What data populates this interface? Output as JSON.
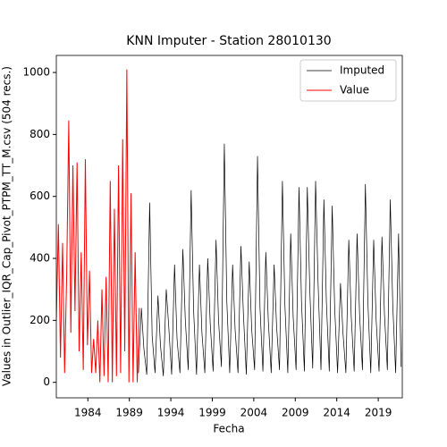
{
  "chart_data": {
    "type": "line",
    "title": "KNN Imputer - Station 28010130",
    "xlabel": "Fecha",
    "ylabel": "Values in Outlier_IQR_Cap_Pivot_PTPM_TT_M.csv (504 recs.)",
    "xlim": [
      1980.2,
      2021.9
    ],
    "ylim": [
      -50,
      1055
    ],
    "xticks": [
      1984,
      1989,
      1994,
      1999,
      2004,
      2009,
      2014,
      2019
    ],
    "yticks": [
      0,
      200,
      400,
      600,
      800,
      1000
    ],
    "legend": "upper right",
    "series": [
      {
        "name": "Imputed",
        "color": "#000000",
        "x": [
          1990.1,
          1990.45,
          1990.75,
          1991.1,
          1991.45,
          1991.75,
          1992.1,
          1992.45,
          1992.75,
          1993.1,
          1993.45,
          1993.75,
          1994.1,
          1994.45,
          1994.75,
          1995.1,
          1995.45,
          1995.75,
          1996.1,
          1996.45,
          1996.75,
          1997.1,
          1997.45,
          1997.75,
          1998.1,
          1998.45,
          1998.75,
          1999.1,
          1999.45,
          1999.75,
          2000.1,
          2000.45,
          2000.75,
          2001.1,
          2001.45,
          2001.75,
          2002.1,
          2002.45,
          2002.75,
          2003.1,
          2003.45,
          2003.75,
          2004.1,
          2004.45,
          2004.75,
          2005.1,
          2005.45,
          2005.75,
          2006.1,
          2006.45,
          2006.75,
          2007.1,
          2007.45,
          2007.75,
          2008.1,
          2008.45,
          2008.75,
          2009.1,
          2009.45,
          2009.75,
          2010.1,
          2010.45,
          2010.75,
          2011.1,
          2011.45,
          2011.75,
          2012.1,
          2012.45,
          2012.75,
          2013.1,
          2013.45,
          2013.75,
          2014.1,
          2014.45,
          2014.75,
          2015.1,
          2015.45,
          2015.75,
          2016.1,
          2016.45,
          2016.75,
          2017.1,
          2017.45,
          2017.75,
          2018.1,
          2018.45,
          2018.75,
          2019.1,
          2019.45,
          2019.75,
          2020.1,
          2020.45,
          2020.75,
          2021.1,
          2021.45,
          2021.75
        ],
        "values": [
          30,
          240,
          110,
          25,
          580,
          150,
          30,
          280,
          120,
          20,
          300,
          180,
          25,
          380,
          140,
          30,
          430,
          200,
          40,
          620,
          230,
          25,
          380,
          160,
          30,
          400,
          190,
          35,
          460,
          200,
          50,
          770,
          260,
          30,
          380,
          170,
          30,
          440,
          220,
          25,
          390,
          170,
          40,
          730,
          240,
          35,
          420,
          200,
          30,
          380,
          180,
          40,
          650,
          250,
          30,
          480,
          210,
          40,
          630,
          260,
          35,
          630,
          300,
          45,
          650,
          320,
          40,
          590,
          260,
          35,
          570,
          240,
          30,
          320,
          160,
          30,
          460,
          210,
          35,
          480,
          220,
          40,
          640,
          260,
          30,
          460,
          200,
          35,
          470,
          220,
          40,
          590,
          250,
          30,
          480,
          50
        ]
      },
      {
        "name": "Value",
        "color": "#ff0000",
        "x": [
          1980.2,
          1980.45,
          1980.7,
          1980.95,
          1981.2,
          1981.45,
          1981.7,
          1981.95,
          1982.2,
          1982.45,
          1982.7,
          1982.95,
          1983.2,
          1983.45,
          1983.7,
          1983.95,
          1984.2,
          1984.45,
          1984.7,
          1984.95,
          1985.2,
          1985.45,
          1985.7,
          1985.95,
          1986.2,
          1986.45,
          1986.7,
          1986.95,
          1987.2,
          1987.45,
          1987.7,
          1987.95,
          1988.2,
          1988.45,
          1988.7,
          1988.95,
          1989.2,
          1989.45,
          1989.7,
          1989.95,
          1990.2
        ],
        "values": [
          200,
          510,
          80,
          450,
          30,
          350,
          845,
          160,
          700,
          230,
          710,
          100,
          420,
          40,
          720,
          120,
          360,
          30,
          140,
          30,
          200,
          0,
          300,
          20,
          340,
          0,
          650,
          0,
          560,
          20,
          700,
          30,
          785,
          100,
          1010,
          0,
          610,
          0,
          420,
          0,
          240
        ]
      }
    ]
  }
}
